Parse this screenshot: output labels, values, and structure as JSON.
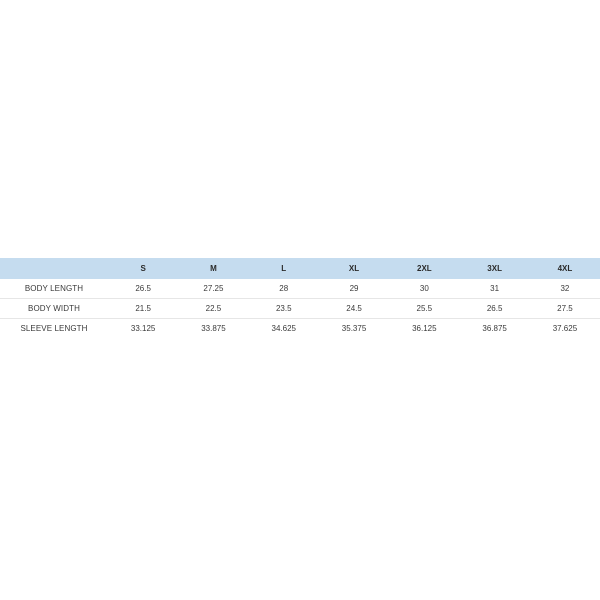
{
  "size_chart": {
    "header_empty": "",
    "sizes": [
      "S",
      "M",
      "L",
      "XL",
      "2XL",
      "3XL",
      "4XL"
    ],
    "rows": [
      {
        "label": "BODY LENGTH",
        "values": [
          "26.5",
          "27.25",
          "28",
          "29",
          "30",
          "31",
          "32"
        ]
      },
      {
        "label": "BODY WIDTH",
        "values": [
          "21.5",
          "22.5",
          "23.5",
          "24.5",
          "25.5",
          "26.5",
          "27.5"
        ]
      },
      {
        "label": "SLEEVE LENGTH",
        "values": [
          "33.125",
          "33.875",
          "34.625",
          "35.375",
          "36.125",
          "36.875",
          "37.625"
        ]
      }
    ]
  },
  "colors": {
    "header_background": "#c5dcef",
    "row_divider": "#e6e6e6",
    "text": "#333333"
  }
}
